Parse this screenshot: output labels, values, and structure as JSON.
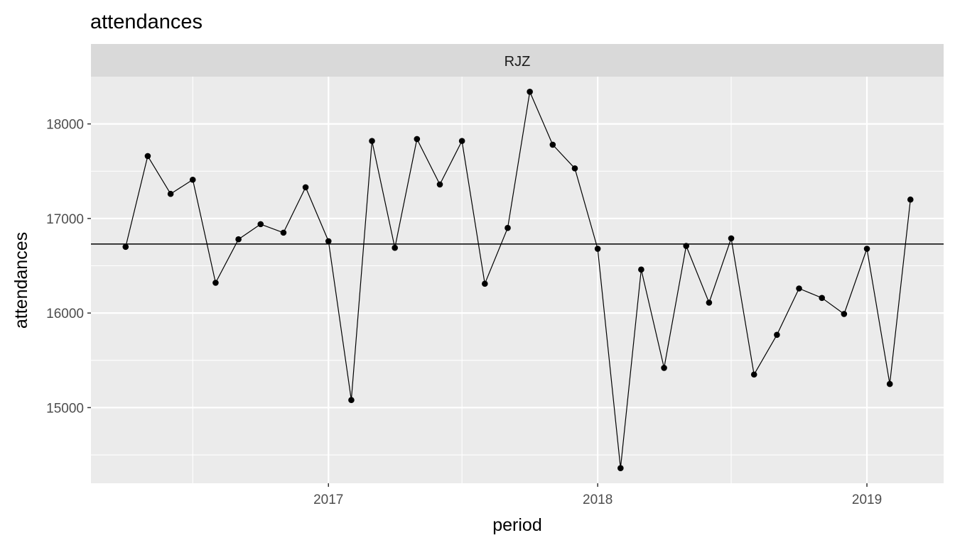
{
  "chart_data": {
    "type": "line",
    "title": "attendances",
    "facet_label": "RJZ",
    "xlabel": "period",
    "ylabel": "attendances",
    "x": [
      "2016-04",
      "2016-05",
      "2016-06",
      "2016-07",
      "2016-08",
      "2016-09",
      "2016-10",
      "2016-11",
      "2016-12",
      "2017-01",
      "2017-02",
      "2017-03",
      "2017-04",
      "2017-05",
      "2017-06",
      "2017-07",
      "2017-08",
      "2017-09",
      "2017-10",
      "2017-11",
      "2017-12",
      "2018-01",
      "2018-02",
      "2018-03",
      "2018-04",
      "2018-05",
      "2018-06",
      "2018-07",
      "2018-08",
      "2018-09",
      "2018-10",
      "2018-11",
      "2018-12",
      "2019-01",
      "2019-02",
      "2019-03"
    ],
    "series": [
      {
        "values": [
          16700,
          17660,
          17260,
          17410,
          16320,
          16780,
          16940,
          16850,
          17330,
          16760,
          15080,
          17820,
          16690,
          17840,
          17360,
          17820,
          16310,
          16900,
          18340,
          17780,
          17530,
          16680,
          14360,
          16460,
          15420,
          16710,
          16110,
          16790,
          15350,
          15770,
          16260,
          16160,
          15990,
          16680,
          15250,
          17200
        ],
        "color": "#000000"
      }
    ],
    "reference_line": {
      "value": 16730,
      "color": "#000000"
    },
    "ylim": [
      14200,
      18500
    ],
    "yticks": [
      15000,
      16000,
      17000,
      18000
    ],
    "xlim": [
      "2016-02-14",
      "2019-04-15"
    ],
    "xticks": [
      {
        "date": "2017-01-01",
        "label": "2017"
      },
      {
        "date": "2018-01-01",
        "label": "2018"
      },
      {
        "date": "2019-01-01",
        "label": "2019"
      }
    ],
    "x_minor_ticks": [
      "2016-07-01",
      "2017-07-01",
      "2018-07-01"
    ],
    "grid": true,
    "legend": "none",
    "panel_background": "#ebebeb",
    "strip_background": "#d9d9d9"
  }
}
